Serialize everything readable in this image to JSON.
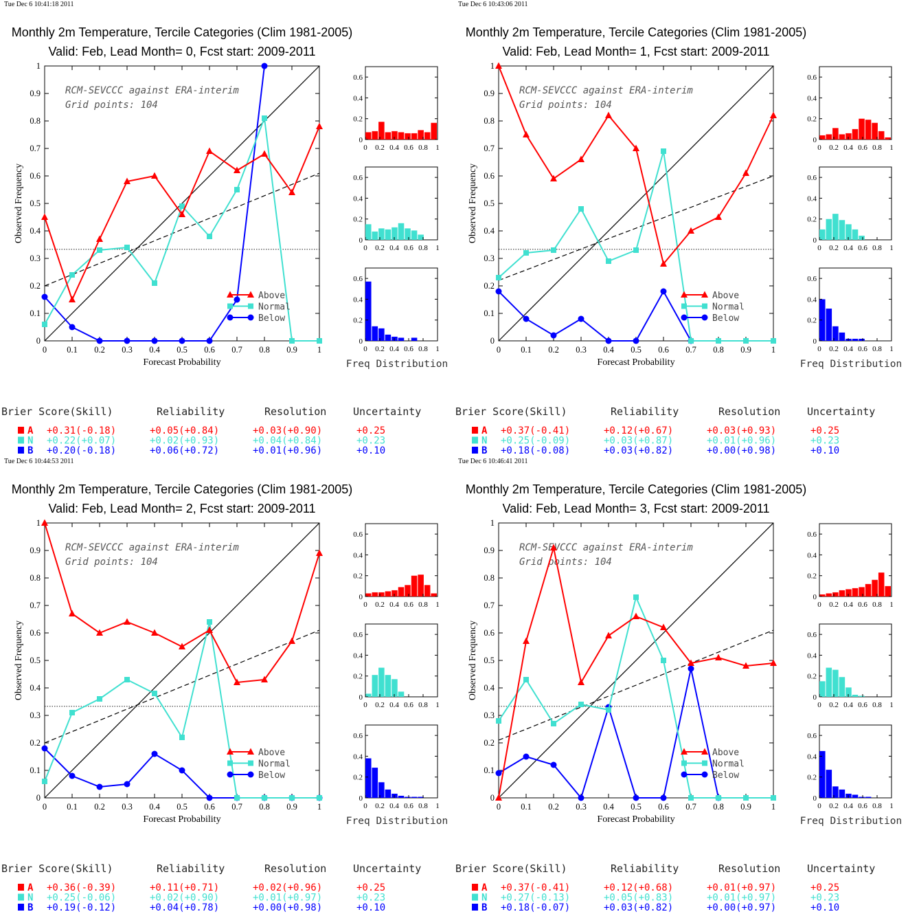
{
  "chart_data": [
    {
      "type": "line",
      "stamp": "Tue Dec  6 10:41:18 2011",
      "title": "Monthly 2m Temperature, Tercile Categories (Clim 1981-2005)",
      "subtitle": "Valid: Feb, Lead Month= 0, Fcst start: 2009-2011",
      "annotation1": "RCM-SEVCCC against ERA-interim",
      "annotation2": "Grid points:  104",
      "xlabel": "Forecast Probability",
      "ylabel": "Observed Frequency",
      "xlim": [
        0,
        1
      ],
      "ylim": [
        0,
        1
      ],
      "x": [
        0,
        0.1,
        0.2,
        0.3,
        0.4,
        0.5,
        0.6,
        0.7,
        0.8,
        0.9,
        1
      ],
      "series": [
        {
          "name": "Above",
          "values": [
            0.45,
            0.15,
            0.37,
            0.58,
            0.6,
            0.46,
            0.69,
            0.62,
            0.68,
            0.54,
            0.78
          ]
        },
        {
          "name": "Normal",
          "values": [
            0.06,
            0.24,
            0.33,
            0.34,
            0.21,
            0.49,
            0.38,
            0.55,
            0.81,
            0,
            0
          ]
        },
        {
          "name": "Below",
          "values": [
            0.16,
            0.05,
            0,
            0,
            0,
            0,
            0,
            0.15,
            1,
            null,
            null
          ]
        }
      ],
      "clim_line": 0.333,
      "regression": [
        0.2,
        0.61
      ],
      "hist_label": "Freq Distribution",
      "hist": {
        "Above": [
          0.07,
          0.08,
          0.17,
          0.07,
          0.08,
          0.07,
          0.06,
          0.06,
          0.09,
          0.07,
          0.16
        ],
        "Normal": [
          0.15,
          0.08,
          0.11,
          0.1,
          0.12,
          0.16,
          0.11,
          0.09,
          0.05
        ],
        "Below": [
          0.57,
          0.14,
          0.12,
          0.06,
          0.04,
          0.03,
          0,
          0.03
        ]
      },
      "scores": {
        "headers": [
          "Brier Score(Skill)",
          "Reliability",
          "Resolution",
          "Uncertainty"
        ],
        "rows": [
          {
            "cat": "A",
            "brier": "+0.31(-0.18)",
            "rel": "+0.05(+0.84)",
            "res": "+0.03(+0.90)",
            "unc": "+0.25"
          },
          {
            "cat": "N",
            "brier": "+0.22(+0.07)",
            "rel": "+0.02(+0.93)",
            "res": "+0.04(+0.84)",
            "unc": "+0.23"
          },
          {
            "cat": "B",
            "brier": "+0.20(-0.18)",
            "rel": "+0.06(+0.72)",
            "res": "+0.01(+0.96)",
            "unc": "+0.10"
          }
        ]
      }
    },
    {
      "type": "line",
      "stamp": "Tue Dec  6 10:43:06 2011",
      "title": "Monthly 2m Temperature, Tercile Categories (Clim 1981-2005)",
      "subtitle": "Valid: Feb, Lead Month= 1, Fcst start: 2009-2011",
      "annotation1": "RCM-SEVCCC against ERA-interim",
      "annotation2": "Grid points:  104",
      "xlabel": "Forecast Probability",
      "ylabel": "Observed Frequency",
      "xlim": [
        0,
        1
      ],
      "ylim": [
        0,
        1
      ],
      "x": [
        0,
        0.1,
        0.2,
        0.3,
        0.4,
        0.5,
        0.6,
        0.7,
        0.8,
        0.9,
        1
      ],
      "series": [
        {
          "name": "Above",
          "values": [
            1.0,
            0.75,
            0.59,
            0.66,
            0.82,
            0.7,
            0.28,
            0.4,
            0.45,
            0.61,
            0.82
          ]
        },
        {
          "name": "Normal",
          "values": [
            0.23,
            0.32,
            0.33,
            0.48,
            0.29,
            0.33,
            0.69,
            0,
            0,
            0,
            0
          ]
        },
        {
          "name": "Below",
          "values": [
            0.18,
            0.08,
            0.02,
            0.08,
            0,
            0,
            0.18,
            0,
            null,
            null,
            null
          ]
        }
      ],
      "clim_line": 0.333,
      "regression": [
        0.22,
        0.6
      ],
      "hist_label": "Freq Distribution",
      "hist": {
        "Above": [
          0.04,
          0.05,
          0.11,
          0.05,
          0.06,
          0.1,
          0.2,
          0.19,
          0.16,
          0.08,
          0.02
        ],
        "Normal": [
          0.1,
          0.2,
          0.25,
          0.19,
          0.15,
          0.1,
          0.04
        ],
        "Below": [
          0.4,
          0.31,
          0.14,
          0.08,
          0.02,
          0.02,
          0.02
        ]
      },
      "scores": {
        "headers": [
          "Brier Score(Skill)",
          "Reliability",
          "Resolution",
          "Uncertainty"
        ],
        "rows": [
          {
            "cat": "A",
            "brier": "+0.37(-0.41)",
            "rel": "+0.12(+0.67)",
            "res": "+0.03(+0.93)",
            "unc": "+0.25"
          },
          {
            "cat": "N",
            "brier": "+0.25(-0.09)",
            "rel": "+0.03(+0.87)",
            "res": "+0.01(+0.96)",
            "unc": "+0.23"
          },
          {
            "cat": "B",
            "brier": "+0.18(-0.08)",
            "rel": "+0.03(+0.82)",
            "res": "+0.00(+0.98)",
            "unc": "+0.10"
          }
        ]
      }
    },
    {
      "type": "line",
      "stamp": "Tue Dec  6 10:44:53 2011",
      "title": "Monthly 2m Temperature, Tercile Categories (Clim 1981-2005)",
      "subtitle": "Valid: Feb, Lead Month= 2, Fcst start: 2009-2011",
      "annotation1": "RCM-SEVCCC against ERA-interim",
      "annotation2": "Grid points:  104",
      "xlabel": "Forecast Probability",
      "ylabel": "Observed Frequency",
      "xlim": [
        0,
        1
      ],
      "ylim": [
        0,
        1
      ],
      "x": [
        0,
        0.1,
        0.2,
        0.3,
        0.4,
        0.5,
        0.6,
        0.7,
        0.8,
        0.9,
        1
      ],
      "series": [
        {
          "name": "Above",
          "values": [
            1.0,
            0.67,
            0.6,
            0.64,
            0.6,
            0.55,
            0.61,
            0.42,
            0.43,
            0.57,
            0.89
          ]
        },
        {
          "name": "Normal",
          "values": [
            0.06,
            0.31,
            0.36,
            0.43,
            0.38,
            0.22,
            0.64,
            0,
            0,
            0,
            0
          ]
        },
        {
          "name": "Below",
          "values": [
            0.18,
            0.08,
            0.04,
            0.05,
            0.16,
            0.1,
            0,
            0,
            0,
            0,
            0
          ]
        }
      ],
      "clim_line": 0.333,
      "regression": [
        0.2,
        0.61
      ],
      "hist_label": "Freq Distribution",
      "hist": {
        "Above": [
          0.03,
          0.04,
          0.04,
          0.05,
          0.06,
          0.09,
          0.11,
          0.2,
          0.21,
          0.11,
          0.03
        ],
        "Normal": [
          0.03,
          0.21,
          0.28,
          0.21,
          0.17,
          0.05
        ],
        "Below": [
          0.38,
          0.29,
          0.15,
          0.08,
          0.04,
          0.02,
          0.01,
          0.01,
          0.01
        ]
      },
      "scores": {
        "headers": [
          "Brier Score(Skill)",
          "Reliability",
          "Resolution",
          "Uncertainty"
        ],
        "rows": [
          {
            "cat": "A",
            "brier": "+0.36(-0.39)",
            "rel": "+0.11(+0.71)",
            "res": "+0.02(+0.96)",
            "unc": "+0.25"
          },
          {
            "cat": "N",
            "brier": "+0.25(-0.06)",
            "rel": "+0.02(+0.90)",
            "res": "+0.01(+0.97)",
            "unc": "+0.23"
          },
          {
            "cat": "B",
            "brier": "+0.19(-0.12)",
            "rel": "+0.04(+0.78)",
            "res": "+0.00(+0.98)",
            "unc": "+0.10"
          }
        ]
      }
    },
    {
      "type": "line",
      "stamp": "Tue Dec  6 10:46:41 2011",
      "title": "Monthly 2m Temperature, Tercile Categories (Clim 1981-2005)",
      "subtitle": "Valid: Feb, Lead Month= 3, Fcst start: 2009-2011",
      "annotation1": "RCM-SEVCCC against ERA-interim",
      "annotation2": "Grid points:  104",
      "xlabel": "Forecast Probability",
      "ylabel": "Observed Frequency",
      "xlim": [
        0,
        1
      ],
      "ylim": [
        0,
        1
      ],
      "x": [
        0,
        0.1,
        0.2,
        0.3,
        0.4,
        0.5,
        0.6,
        0.7,
        0.8,
        0.9,
        1
      ],
      "series": [
        {
          "name": "Above",
          "values": [
            0,
            0.57,
            0.91,
            0.42,
            0.59,
            0.66,
            0.62,
            0.49,
            0.51,
            0.48,
            0.49
          ]
        },
        {
          "name": "Normal",
          "values": [
            0.28,
            0.43,
            0.27,
            0.34,
            0.32,
            0.73,
            0.5,
            0,
            0,
            0,
            0
          ]
        },
        {
          "name": "Below",
          "values": [
            0.09,
            0.15,
            0.12,
            0,
            0.33,
            0,
            0,
            0.47,
            0,
            null,
            null
          ]
        }
      ],
      "clim_line": 0.333,
      "regression": [
        0.21,
        0.61
      ],
      "hist_label": "Freq Distribution",
      "hist": {
        "Above": [
          0.02,
          0.03,
          0.04,
          0.06,
          0.07,
          0.08,
          0.09,
          0.12,
          0.16,
          0.23,
          0.1
        ],
        "Normal": [
          0.15,
          0.28,
          0.26,
          0.19,
          0.09,
          0.02,
          0.01
        ],
        "Below": [
          0.45,
          0.27,
          0.11,
          0.08,
          0.04,
          0.03,
          0.01,
          0.01
        ]
      },
      "scores": {
        "headers": [
          "Brier Score(Skill)",
          "Reliability",
          "Resolution",
          "Uncertainty"
        ],
        "rows": [
          {
            "cat": "A",
            "brier": "+0.37(-0.41)",
            "rel": "+0.12(+0.68)",
            "res": "+0.01(+0.97)",
            "unc": "+0.25"
          },
          {
            "cat": "N",
            "brier": "+0.27(-0.13)",
            "rel": "+0.05(+0.83)",
            "res": "+0.01(+0.97)",
            "unc": "+0.23"
          },
          {
            "cat": "B",
            "brier": "+0.18(-0.07)",
            "rel": "+0.03(+0.82)",
            "res": "+0.00(+0.97)",
            "unc": "+0.10"
          }
        ]
      }
    }
  ],
  "colors": {
    "Above": "#ff0000",
    "Normal": "#40e0d0",
    "Below": "#0000ff"
  },
  "markers": {
    "Above": "triangle",
    "Normal": "square",
    "Below": "circle"
  },
  "main_ticks": [
    "0",
    "0.1",
    "0.2",
    "0.3",
    "0.4",
    "0.5",
    "0.6",
    "0.7",
    "0.8",
    "0.9",
    "1"
  ],
  "hist_xticks": [
    "0",
    "0.2",
    "0.4",
    "0.6",
    "0.8",
    "1"
  ],
  "hist_yticks": [
    "0",
    "0.2",
    "0.4",
    "0.6"
  ]
}
